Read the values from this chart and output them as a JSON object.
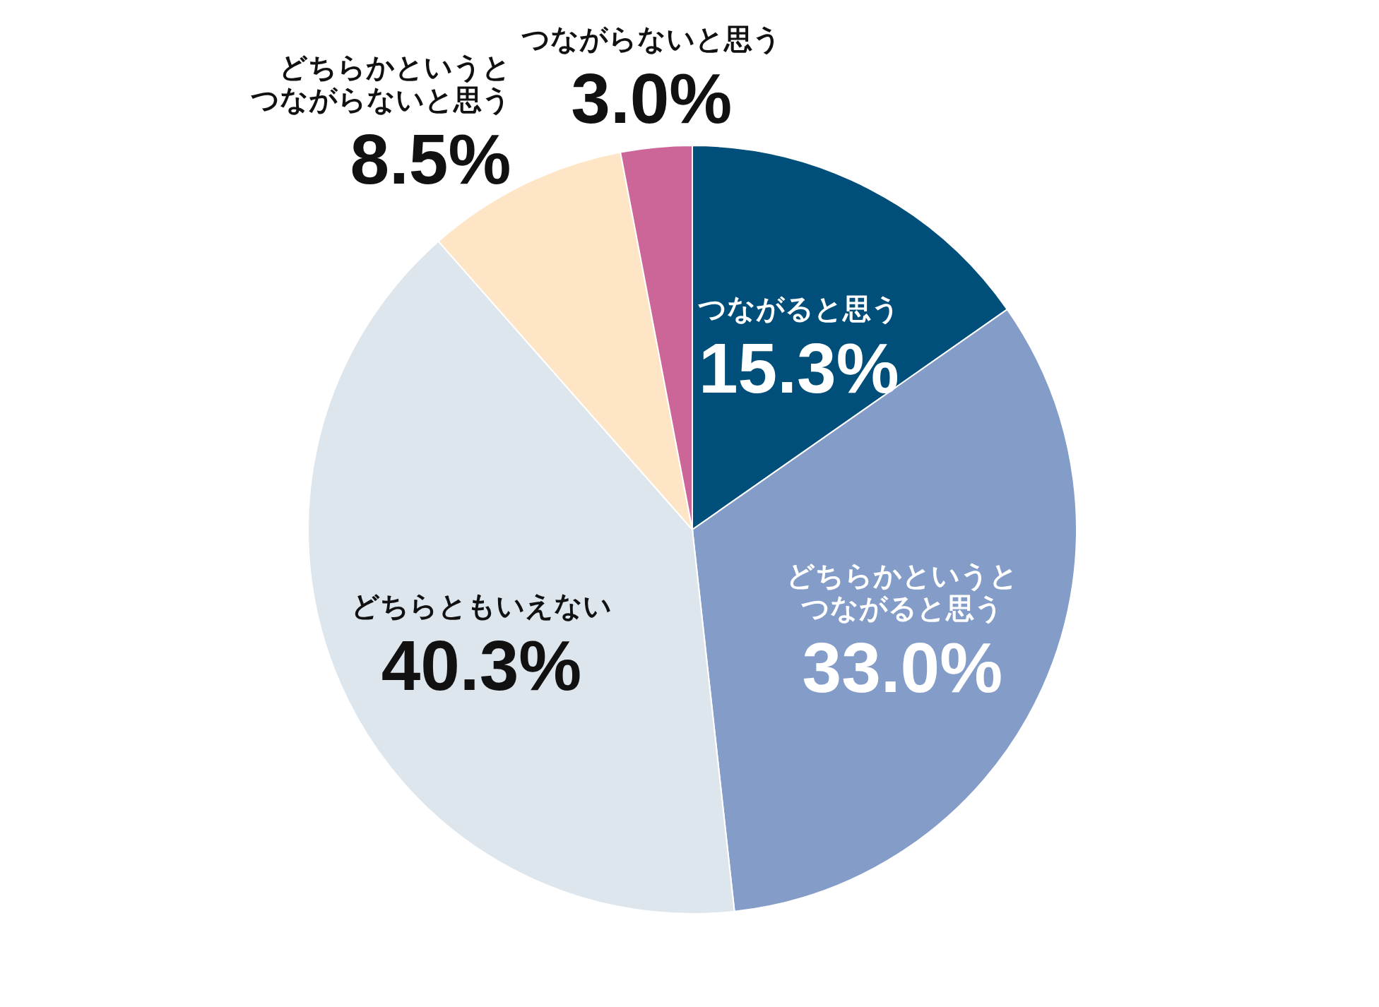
{
  "chart_data": {
    "type": "pie",
    "categories": [
      "つながると思う",
      "どちらかというとつながると思う",
      "どちらともいえない",
      "どちらかというとつながらないと思う",
      "つながらないと思う"
    ],
    "values": [
      15.3,
      33.0,
      40.3,
      8.5,
      3.0
    ],
    "colors": [
      "#004f7a",
      "#839cc8",
      "#dde5ed",
      "#fde5c6",
      "#cc6699"
    ],
    "value_labels": [
      "15.3%",
      "33.0%",
      "40.3%",
      "8.5%",
      "3.0%"
    ]
  }
}
